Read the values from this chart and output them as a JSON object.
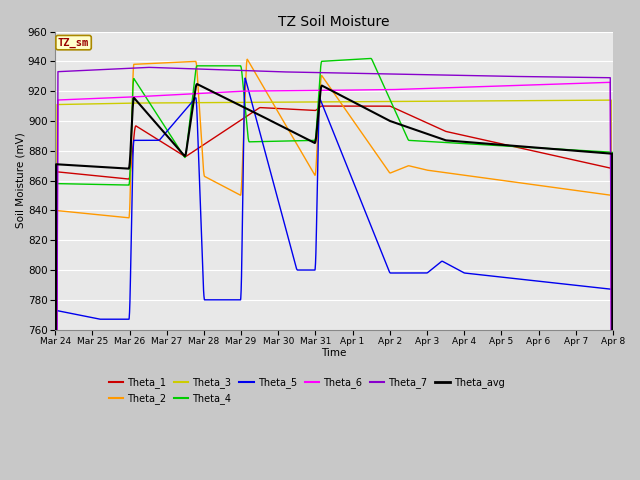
{
  "title": "TZ Soil Moisture",
  "ylabel": "Soil Moisture (mV)",
  "xlabel": "Time",
  "ylim": [
    760,
    960
  ],
  "bg_color": "#e8e8e8",
  "grid_color": "#ffffff",
  "series_colors": {
    "Theta_1": "#cc0000",
    "Theta_2": "#ff9900",
    "Theta_3": "#cccc00",
    "Theta_4": "#00cc00",
    "Theta_5": "#0000ee",
    "Theta_6": "#ff00ff",
    "Theta_7": "#8800cc",
    "Theta_avg": "#000000"
  },
  "label_box_color": "#ffffcc",
  "label_box_text": "TZ_sm",
  "label_box_text_color": "#990000",
  "x_tick_labels": [
    "Mar 24",
    "Mar 25",
    "Mar 26",
    "Mar 27",
    "Mar 28",
    "Mar 29",
    "Mar 30",
    "Mar 31",
    "Apr 1",
    "Apr 2",
    "Apr 3",
    "Apr 4",
    "Apr 5",
    "Apr 6",
    "Apr 7",
    "Apr 8"
  ]
}
